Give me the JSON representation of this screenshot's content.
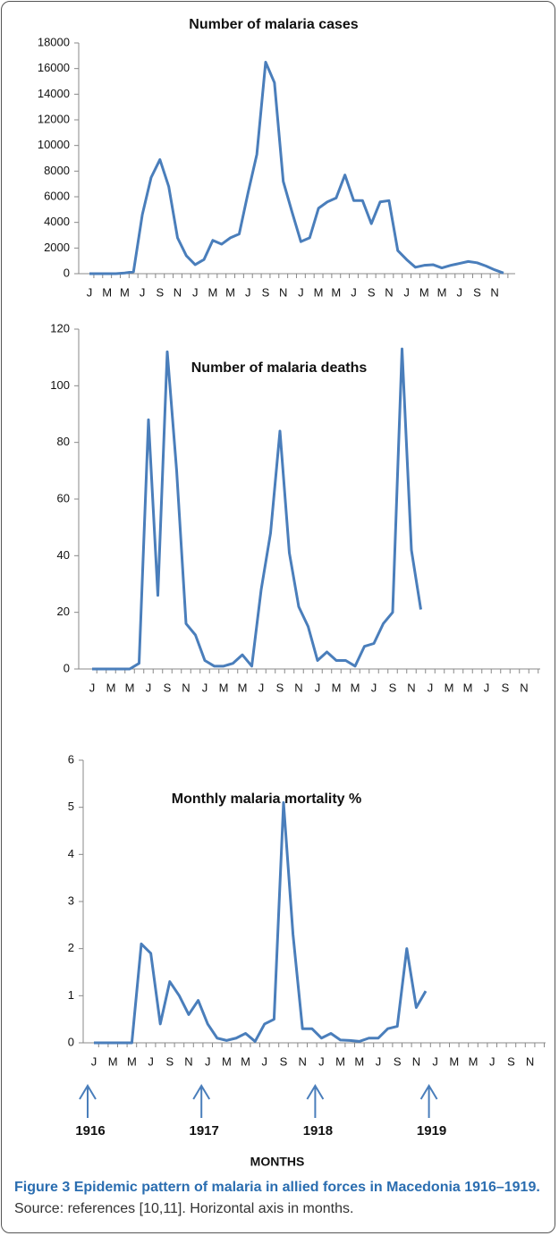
{
  "chart_data": [
    {
      "type": "line",
      "title": "Number of malaria cases",
      "color": "#4a7ebb",
      "categories": [
        "J",
        null,
        "M",
        null,
        "M",
        null,
        "J",
        null,
        "S",
        null,
        "N",
        null,
        "J",
        null,
        "M",
        null,
        "M",
        null,
        "J",
        null,
        "S",
        null,
        "N",
        null,
        "J",
        null,
        "M",
        null,
        "M",
        null,
        "J",
        null,
        "S",
        null,
        "N",
        null,
        "J",
        null,
        "M",
        null,
        "M",
        null,
        "J",
        null,
        "S",
        null,
        "N",
        null
      ],
      "values": [
        0,
        0,
        0,
        0,
        50,
        150,
        4600,
        7500,
        8900,
        6800,
        2800,
        1400,
        700,
        1100,
        2600,
        2300,
        2800,
        3100,
        6300,
        9300,
        16500,
        14900,
        7200,
        4800,
        2500,
        2800,
        5100,
        5600,
        5900,
        7700,
        5700,
        5700,
        3900,
        5600,
        5700,
        1800,
        1100,
        500,
        650,
        700,
        450,
        650,
        800,
        950,
        850,
        600,
        300,
        50
      ],
      "ylim": [
        0,
        18000
      ],
      "yticks": [
        0,
        2000,
        4000,
        6000,
        8000,
        10000,
        12000,
        14000,
        16000,
        18000
      ]
    },
    {
      "type": "line",
      "title": "Number of malaria deaths",
      "color": "#4a7ebb",
      "categories": [
        "J",
        null,
        "M",
        null,
        "M",
        null,
        "J",
        null,
        "S",
        null,
        "N",
        null,
        "J",
        null,
        "M",
        null,
        "M",
        null,
        "J",
        null,
        "S",
        null,
        "N",
        null,
        "J",
        null,
        "M",
        null,
        "M",
        null,
        "J",
        null,
        "S",
        null,
        "N",
        null,
        "J",
        null,
        "M",
        null,
        "M",
        null,
        "J",
        null,
        "S",
        null,
        "N",
        null
      ],
      "values": [
        0,
        0,
        0,
        0,
        0,
        2,
        88,
        26,
        112,
        70,
        16,
        12,
        3,
        1,
        1,
        2,
        5,
        1,
        28,
        48,
        84,
        41,
        22,
        15,
        3,
        6,
        3,
        3,
        1,
        8,
        9,
        16,
        20,
        113,
        42,
        21,
        null,
        null,
        null,
        null,
        null,
        null,
        null,
        null,
        null,
        null,
        null,
        null
      ],
      "ylim": [
        0,
        120
      ],
      "yticks": [
        0,
        20,
        40,
        60,
        80,
        100,
        120
      ]
    },
    {
      "type": "line",
      "title": "Monthly malaria mortality  %",
      "color": "#4a7ebb",
      "categories": [
        "J",
        null,
        "M",
        null,
        "M",
        null,
        "J",
        null,
        "S",
        null,
        "N",
        null,
        "J",
        null,
        "M",
        null,
        "M",
        null,
        "J",
        null,
        "S",
        null,
        "N",
        null,
        "J",
        null,
        "M",
        null,
        "M",
        null,
        "J",
        null,
        "S",
        null,
        "N",
        null,
        "J",
        null,
        "M",
        null,
        "M",
        null,
        "J",
        null,
        "S",
        null,
        "N",
        null
      ],
      "values": [
        0,
        0,
        0,
        0,
        0,
        2.1,
        1.9,
        0.4,
        1.3,
        1.0,
        0.6,
        0.9,
        0.4,
        0.1,
        0.05,
        0.1,
        0.2,
        0.03,
        0.4,
        0.5,
        5.1,
        2.3,
        0.3,
        0.3,
        0.1,
        0.2,
        0.06,
        0.05,
        0.03,
        0.1,
        0.1,
        0.3,
        0.35,
        2.0,
        0.75,
        1.1,
        null,
        null,
        null,
        null,
        null,
        null,
        null,
        null,
        null,
        null,
        null,
        null
      ],
      "ylim": [
        0,
        6
      ],
      "yticks": [
        0,
        1,
        2,
        3,
        4,
        5,
        6
      ],
      "annotations": [
        "1916",
        "1917",
        "1918",
        "1919"
      ],
      "x_label": "MONTHS"
    }
  ],
  "caption": {
    "label": "Figure 3",
    "title": "Epidemic pattern of malaria in allied forces in Macedonia 1916–1919.",
    "text": "Source: references [10,11]. Horizontal axis in months."
  }
}
